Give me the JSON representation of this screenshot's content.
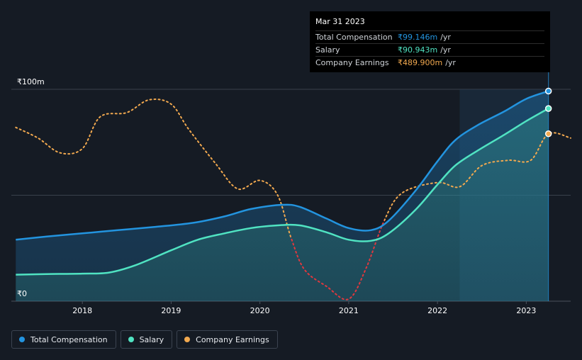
{
  "chart_data": {
    "type": "line",
    "y_axis": {
      "range": [
        0,
        100
      ],
      "ticks": [
        {
          "value": 100,
          "label": "₹100m"
        },
        {
          "value": 0,
          "label": "₹0"
        }
      ]
    },
    "x_axis": {
      "range": [
        2017.2,
        2023.5
      ],
      "ticks": [
        2018,
        2019,
        2020,
        2021,
        2022,
        2023
      ],
      "tick_labels": [
        "2018",
        "2019",
        "2020",
        "2021",
        "2022",
        "2023"
      ]
    },
    "grid": true,
    "highlight_from": 2022.25,
    "series": [
      {
        "name": "Total Compensation",
        "color": "#2394df",
        "style": "solid-area",
        "x": [
          2017.25,
          2017.6,
          2018.0,
          2018.4,
          2018.8,
          2019.25,
          2019.6,
          2019.9,
          2020.25,
          2020.45,
          2020.75,
          2021.0,
          2021.25,
          2021.45,
          2021.75,
          2022.0,
          2022.2,
          2022.45,
          2022.75,
          2023.0,
          2023.25
        ],
        "values": [
          29,
          30.5,
          32,
          33.5,
          35,
          37,
          40,
          43.5,
          45.5,
          44.5,
          39,
          34.5,
          33.5,
          38,
          52,
          66,
          76,
          83,
          89.5,
          95.5,
          99.146
        ]
      },
      {
        "name": "Salary",
        "color": "#50e3c2",
        "style": "solid-area",
        "x": [
          2017.25,
          2017.6,
          2018.0,
          2018.3,
          2018.6,
          2019.0,
          2019.3,
          2019.6,
          2019.9,
          2020.2,
          2020.45,
          2020.75,
          2021.0,
          2021.25,
          2021.45,
          2021.75,
          2022.0,
          2022.2,
          2022.45,
          2022.75,
          2023.0,
          2023.25
        ],
        "values": [
          12.5,
          12.8,
          13,
          13.5,
          17,
          24,
          29,
          32,
          34.5,
          35.8,
          35.8,
          32.5,
          29,
          28.5,
          32,
          43,
          55,
          64,
          71,
          78.5,
          85,
          90.943
        ]
      },
      {
        "name": "Company Earnings",
        "color": "#f2a94f",
        "negative_color": "#e0383e",
        "style": "dotted",
        "x": [
          2017.25,
          2017.5,
          2017.75,
          2018.0,
          2018.2,
          2018.5,
          2018.75,
          2019.0,
          2019.2,
          2019.5,
          2019.75,
          2020.0,
          2020.2,
          2020.35,
          2020.5,
          2020.75,
          2021.0,
          2021.2,
          2021.4,
          2021.6,
          2022.0,
          2022.25,
          2022.5,
          2022.8,
          2023.05,
          2023.25,
          2023.5
        ],
        "values": [
          82,
          77,
          70,
          72,
          87,
          89,
          95,
          93,
          81,
          65,
          53,
          57,
          50,
          30,
          15,
          7,
          1,
          16,
          38,
          51,
          56,
          54,
          64,
          66.5,
          66.5,
          79,
          77
        ],
        "latest_label": "₹489.900m"
      }
    ]
  },
  "tooltip": {
    "date": "Mar 31 2023",
    "rows": [
      {
        "name": "Total Compensation",
        "value": "₹99.146m",
        "unit": "/yr",
        "color": "#2394df"
      },
      {
        "name": "Salary",
        "value": "₹90.943m",
        "unit": "/yr",
        "color": "#50e3c2"
      },
      {
        "name": "Company Earnings",
        "value": "₹489.900m",
        "unit": "/yr",
        "color": "#f2a94f"
      }
    ]
  },
  "legend": {
    "items": [
      {
        "label": "Total Compensation",
        "color": "#2394df"
      },
      {
        "label": "Salary",
        "color": "#50e3c2"
      },
      {
        "label": "Company Earnings",
        "color": "#f2a94f"
      }
    ]
  }
}
